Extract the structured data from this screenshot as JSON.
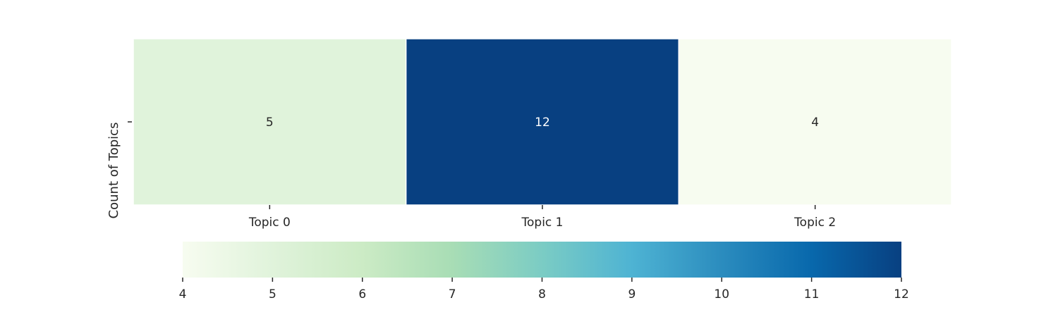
{
  "chart_data": {
    "type": "heatmap",
    "categories": [
      "Topic 0",
      "Topic 1",
      "Topic 2"
    ],
    "rows": [
      ""
    ],
    "values": [
      [
        5,
        12,
        4
      ]
    ],
    "ylabel": "Count of Topics",
    "annotations": [
      "5",
      "12",
      "4"
    ],
    "colormap": "GnBu",
    "colorbar": {
      "range": [
        4,
        12
      ],
      "ticks": [
        "4",
        "5",
        "6",
        "7",
        "8",
        "9",
        "10",
        "11",
        "12"
      ],
      "orientation": "horizontal",
      "placement": "bottom"
    },
    "grid": false
  },
  "colors": {
    "cmap_stops": [
      "#f7fcf0",
      "#e0f3db",
      "#ccebc5",
      "#a8ddb5",
      "#7bccc4",
      "#4eb3d3",
      "#2b8cbe",
      "#0868ac",
      "#084081"
    ],
    "text_dark": "#262626",
    "text_light": "#ffffff"
  }
}
